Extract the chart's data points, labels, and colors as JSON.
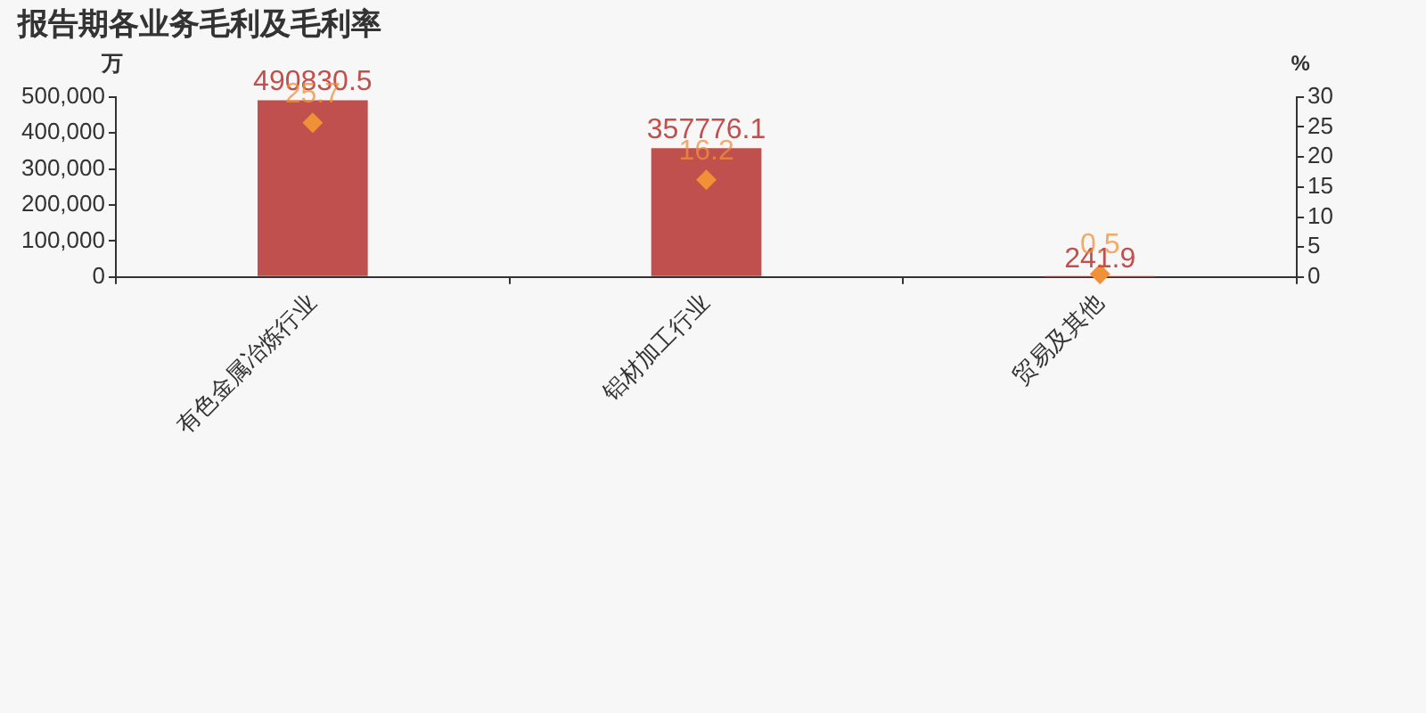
{
  "chart_data": {
    "type": "bar",
    "title": "报告期各业务毛利及毛利率",
    "ylabel": "万",
    "y2label": "%",
    "categories": [
      "有色金属冶炼行业",
      "铝材加工行业",
      "贸易及其他"
    ],
    "series": [
      {
        "color": "#c0504d",
        "values": [
          490830.5,
          357776.1,
          241.9
        ]
      },
      {
        "type": "scatter",
        "axis": "y2",
        "color": "#f0913a",
        "marker": "diamond",
        "x": [
          "有色金属冶炼行业",
          "铝材加工行业",
          "贸易及其他"
        ],
        "values": [
          25.7,
          16.2,
          0.5
        ]
      }
    ],
    "ylim": [
      0,
      500000
    ],
    "yticks": [
      {
        "value": 0,
        "label": "0"
      },
      {
        "value": 100000,
        "label": "100,000"
      },
      {
        "value": 200000,
        "label": "200,000"
      },
      {
        "value": 300000,
        "label": "300,000"
      },
      {
        "value": 400000,
        "label": "400,000"
      },
      {
        "value": 500000,
        "label": "500,000"
      }
    ],
    "y2lim": [
      0,
      30
    ],
    "y2ticks": [
      0,
      5,
      10,
      15,
      20,
      25,
      30
    ],
    "data_labels": true,
    "legend": false,
    "grid": false
  }
}
